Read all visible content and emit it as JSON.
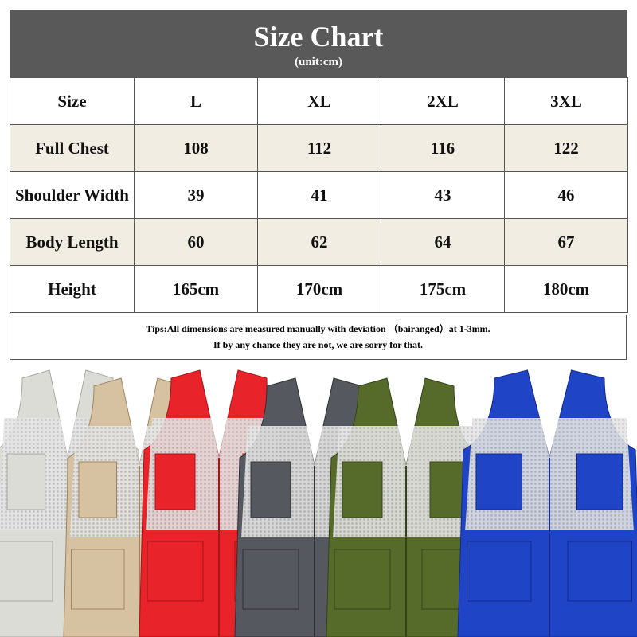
{
  "header": {
    "title": "Size Chart",
    "subtitle": "(unit:cm)"
  },
  "table": {
    "columns": [
      "Size",
      "L",
      "XL",
      "2XL",
      "3XL"
    ],
    "rows": [
      [
        "Full Chest",
        "108",
        "112",
        "116",
        "122"
      ],
      [
        "Shoulder Width",
        "39",
        "41",
        "43",
        "46"
      ],
      [
        "Body Length",
        "60",
        "62",
        "64",
        "67"
      ],
      [
        "Height",
        "165cm",
        "170cm",
        "175cm",
        "180cm"
      ]
    ]
  },
  "tips": [
    "Tips:All dimensions are measured manually with deviation （bairanged）at 1-3mm.",
    "If by any chance they are not, we are sorry for that."
  ]
}
